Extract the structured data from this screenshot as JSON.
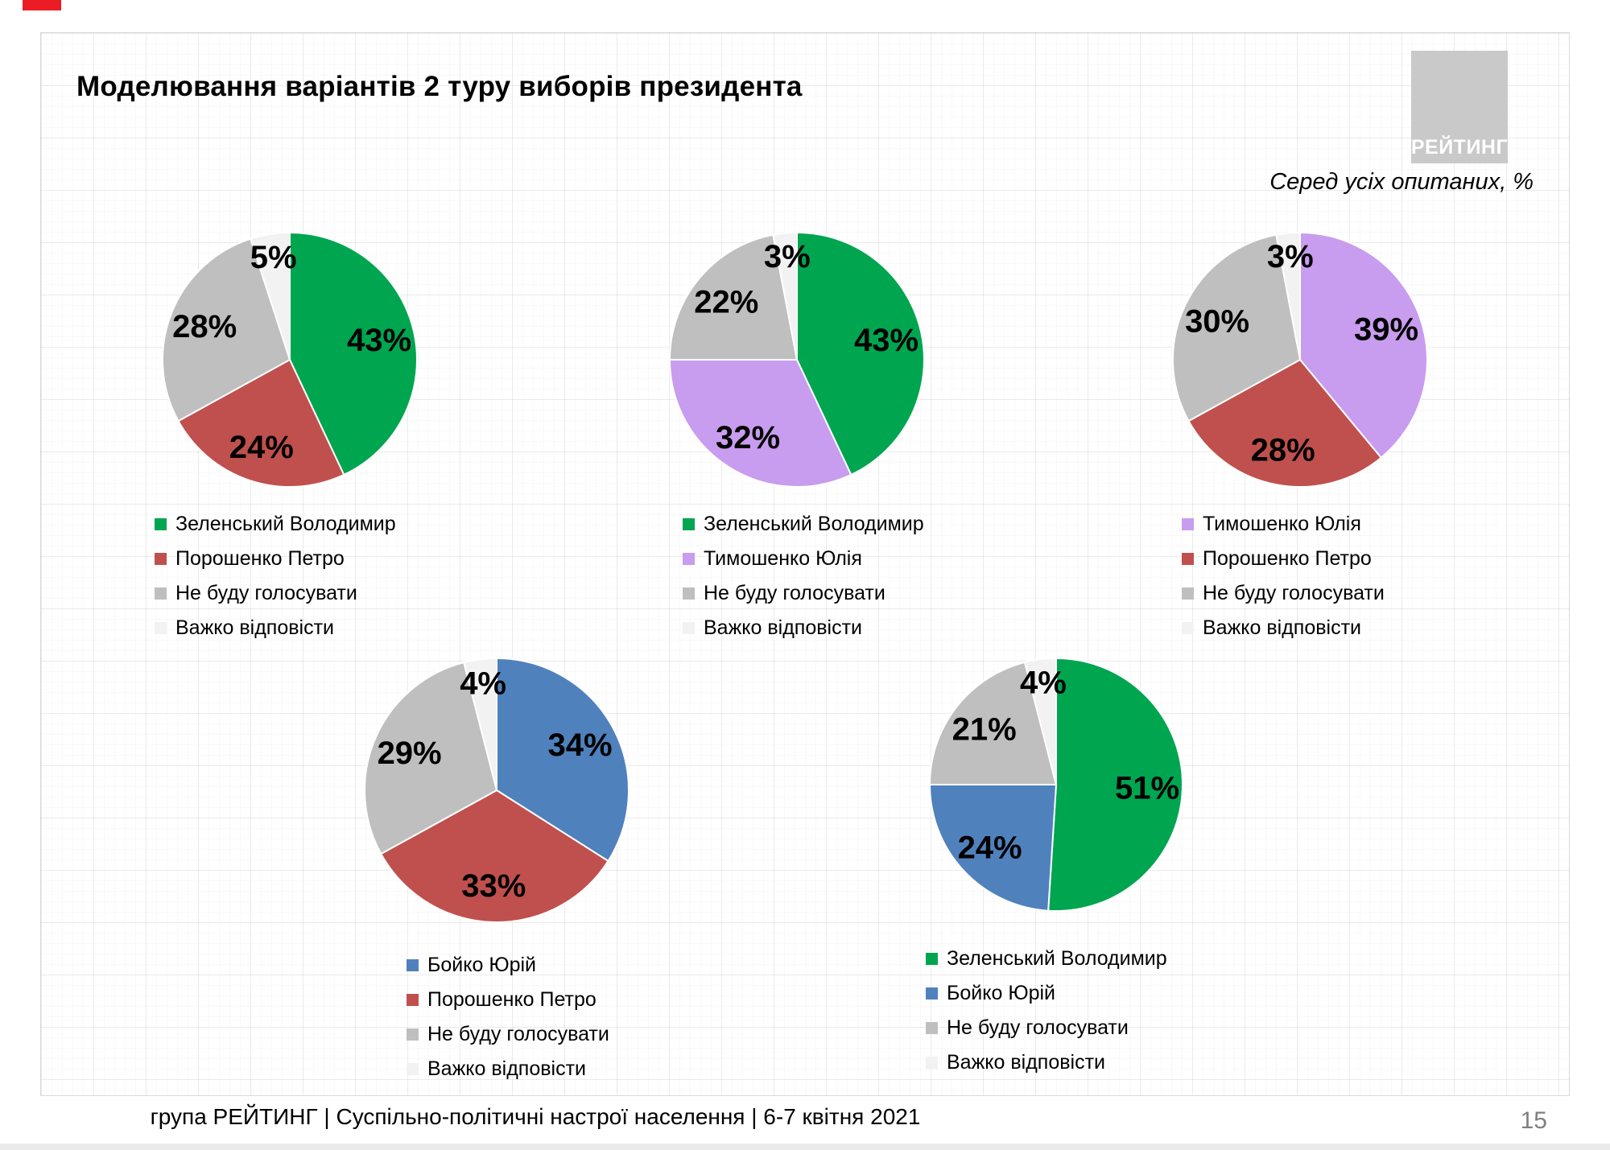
{
  "slide": {
    "title": "Моделювання варіантів 2 туру виборів президента",
    "subtitle": "Серед усіх опитаних, %",
    "logo_text": "РЕЙТИНГ",
    "footer_text": "група РЕЙТИНГ | Суспільно-політичні настрої населення | 6-7 квітня 2021",
    "page_number": "15"
  },
  "palette": {
    "green": "#00A550",
    "red": "#C0504D",
    "purple": "#C89CEE",
    "blue": "#4F81BD",
    "gray": "#BFBFBF",
    "light_gray": "#F2F2F2",
    "logo_bg": "#C9C9C9",
    "accent_red": "#EC1C24"
  },
  "chart_data": [
    {
      "type": "pie",
      "legend_position": "bottom",
      "slices": [
        {
          "label": "Зеленський Володимир",
          "value": 43,
          "color": "#00A550"
        },
        {
          "label": "Порошенко Петро",
          "value": 24,
          "color": "#C0504D"
        },
        {
          "label": "Не буду голосувати",
          "value": 28,
          "color": "#BFBFBF"
        },
        {
          "label": "Важко відповісти",
          "value": 5,
          "color": "#F2F2F2"
        }
      ]
    },
    {
      "type": "pie",
      "legend_position": "bottom",
      "slices": [
        {
          "label": "Зеленський Володимир",
          "value": 43,
          "color": "#00A550"
        },
        {
          "label": "Тимошенко Юлія",
          "value": 32,
          "color": "#C89CEE"
        },
        {
          "label": "Не буду голосувати",
          "value": 22,
          "color": "#BFBFBF"
        },
        {
          "label": "Важко відповісти",
          "value": 3,
          "color": "#F2F2F2"
        }
      ]
    },
    {
      "type": "pie",
      "legend_position": "bottom",
      "slices": [
        {
          "label": "Тимошенко Юлія",
          "value": 39,
          "color": "#C89CEE"
        },
        {
          "label": "Порошенко Петро",
          "value": 28,
          "color": "#C0504D"
        },
        {
          "label": "Не буду голосувати",
          "value": 30,
          "color": "#BFBFBF"
        },
        {
          "label": "Важко відповісти",
          "value": 3,
          "color": "#F2F2F2"
        }
      ]
    },
    {
      "type": "pie",
      "legend_position": "bottom",
      "slices": [
        {
          "label": "Бойко Юрій",
          "value": 34,
          "color": "#4F81BD"
        },
        {
          "label": "Порошенко Петро",
          "value": 33,
          "color": "#C0504D"
        },
        {
          "label": "Не буду голосувати",
          "value": 29,
          "color": "#BFBFBF"
        },
        {
          "label": "Важко відповісти",
          "value": 4,
          "color": "#F2F2F2"
        }
      ]
    },
    {
      "type": "pie",
      "legend_position": "bottom",
      "slices": [
        {
          "label": "Зеленський Володимир",
          "value": 51,
          "color": "#00A550"
        },
        {
          "label": "Бойко Юрій",
          "value": 24,
          "color": "#4F81BD"
        },
        {
          "label": "Не буду голосувати",
          "value": 21,
          "color": "#BFBFBF"
        },
        {
          "label": "Важко відповісти",
          "value": 4,
          "color": "#F2F2F2"
        }
      ]
    }
  ]
}
